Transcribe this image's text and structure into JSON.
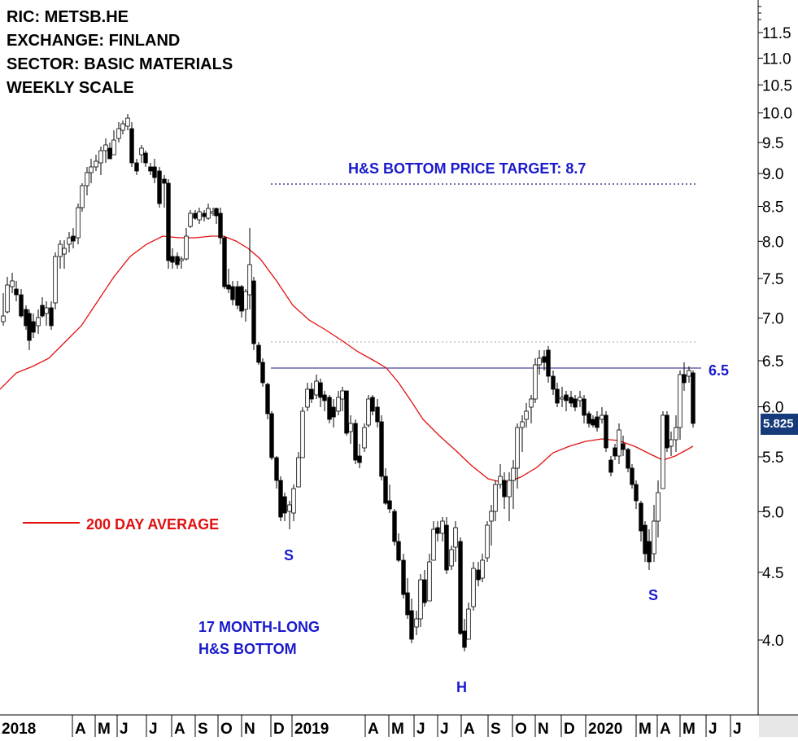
{
  "header": {
    "ric": "RIC: METSB.HE",
    "exchange": "EXCHANGE: FINLAND",
    "sector": "SECTOR: BASIC MATERIALS",
    "scale": "WEEKLY SCALE"
  },
  "annotations": {
    "target": "H&S BOTTOM PRICE TARGET: 8.7",
    "neckline": "6.5",
    "shoulder_left": "S",
    "head": "H",
    "shoulder_right": "S",
    "pattern_line1": "17 MONTH-LONG",
    "pattern_line2": "H&S BOTTOM",
    "legend_ma": "200 DAY AVERAGE",
    "last_price": "5.825"
  },
  "colors": {
    "ma": "#e01010",
    "annotation": "#1a1acc",
    "neckline": "#1a1a80",
    "price_box": "#163a7a",
    "bull": "#ffffff",
    "bear": "#000000"
  },
  "chart_data": {
    "type": "candlestick",
    "scale": "log",
    "ylim": [
      3.55,
      12.1
    ],
    "yticks": [
      "4.0",
      "4.5",
      "5.0",
      "5.5",
      "6.0",
      "6.5",
      "7.0",
      "7.5",
      "8.0",
      "8.5",
      "9.0",
      "9.5",
      "10.0",
      "10.5",
      "11.0",
      "11.5"
    ],
    "xlabels": [
      "2018",
      "A",
      "M",
      "J",
      "J",
      "A",
      "S",
      "O",
      "N",
      "D",
      "2019",
      "A",
      "M",
      "J",
      "J",
      "A",
      "S",
      "O",
      "N",
      "D",
      "2020",
      "M",
      "A",
      "M",
      "J",
      "J"
    ],
    "series": [
      {
        "name": "200 DAY AVERAGE",
        "values": [
          6.2,
          6.4,
          6.5,
          6.7,
          7.1,
          7.5,
          7.8,
          8.0,
          8.05,
          8.05,
          8.1,
          8.05,
          7.9,
          7.6,
          7.2,
          6.9,
          6.7,
          6.5,
          6.25,
          5.95,
          5.65,
          5.45,
          5.3,
          5.25,
          5.3,
          5.45,
          5.6,
          5.7,
          5.75,
          5.75,
          5.7,
          5.6,
          5.5,
          5.55,
          5.6
        ]
      },
      {
        "name": "close",
        "values": [
          7.0,
          7.4,
          7.1,
          6.8,
          7.1,
          8.0,
          8.3,
          9.0,
          9.4,
          9.7,
          9.2,
          8.6,
          7.7,
          8.0,
          8.4,
          8.3,
          7.6,
          7.2,
          6.4,
          5.4,
          4.9,
          5.6,
          6.1,
          6.0,
          5.7,
          5.6,
          6.0,
          5.2,
          4.7,
          4.3,
          4.05,
          4.4,
          4.6,
          4.0,
          4.45,
          4.9,
          5.3,
          5.2,
          5.8,
          6.4,
          6.3,
          6.1,
          6.0,
          5.8,
          5.6,
          5.4,
          5.2,
          4.75,
          4.95,
          5.5,
          5.8,
          6.3,
          5.825
        ]
      }
    ],
    "price_target": 8.7,
    "neckline": 6.5,
    "last_price": 5.825,
    "grid": false,
    "legend": "left"
  }
}
